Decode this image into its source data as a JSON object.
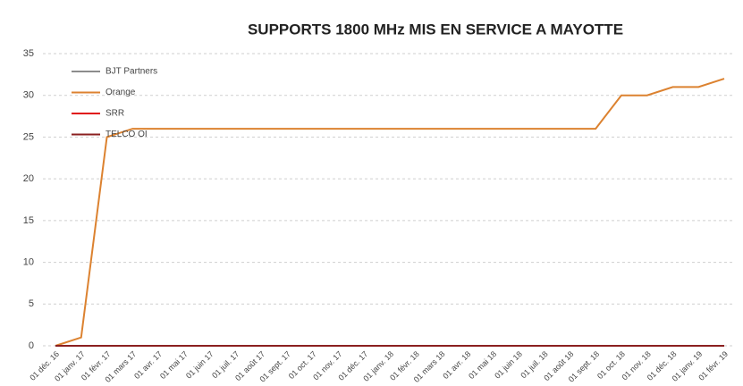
{
  "chart_data": {
    "type": "line",
    "title": "SUPPORTS 1800 MHz MIS EN SERVICE  A MAYOTTE",
    "categories": [
      "01 déc. 16",
      "01 janv. 17",
      "01 févr. 17",
      "01 mars 17",
      "01 avr. 17",
      "01 mai 17",
      "01 juin 17",
      "01 juil. 17",
      "01 août 17",
      "01 sept. 17",
      "01 oct. 17",
      "01 nov. 17",
      "01 déc. 17",
      "01 janv. 18",
      "01 févr. 18",
      "01 mars 18",
      "01 avr. 18",
      "01 mai 18",
      "01 juin 18",
      "01 juil. 18",
      "01 août 18",
      "01 sept. 18",
      "01 oct. 18",
      "01 nov. 18",
      "01 déc. 18",
      "01 janv. 19",
      "01 févr. 19"
    ],
    "series": [
      {
        "name": "BJT Partners",
        "color": "#8c8c8c",
        "values": [
          0,
          0,
          0,
          0,
          0,
          0,
          0,
          0,
          0,
          0,
          0,
          0,
          0,
          0,
          0,
          0,
          0,
          0,
          0,
          0,
          0,
          0,
          0,
          0,
          0,
          0,
          0
        ]
      },
      {
        "name": "Orange",
        "color": "#dc8230",
        "values": [
          0,
          1,
          25,
          26,
          26,
          26,
          26,
          26,
          26,
          26,
          26,
          26,
          26,
          26,
          26,
          26,
          26,
          26,
          26,
          26,
          26,
          26,
          30,
          30,
          31,
          31,
          32
        ]
      },
      {
        "name": "SRR",
        "color": "#e01010",
        "values": [
          0,
          0,
          0,
          0,
          0,
          0,
          0,
          0,
          0,
          0,
          0,
          0,
          0,
          0,
          0,
          0,
          0,
          0,
          0,
          0,
          0,
          0,
          0,
          0,
          0,
          0,
          0
        ]
      },
      {
        "name": "TELCO OI",
        "color": "#8b2020",
        "values": [
          0,
          0,
          0,
          0,
          0,
          0,
          0,
          0,
          0,
          0,
          0,
          0,
          0,
          0,
          0,
          0,
          0,
          0,
          0,
          0,
          0,
          0,
          0,
          0,
          0,
          0,
          0
        ]
      }
    ],
    "ylim": [
      0,
      35
    ],
    "yticks": [
      0,
      5,
      10,
      15,
      20,
      25,
      30,
      35
    ],
    "grid": true,
    "legend": "top-left"
  }
}
